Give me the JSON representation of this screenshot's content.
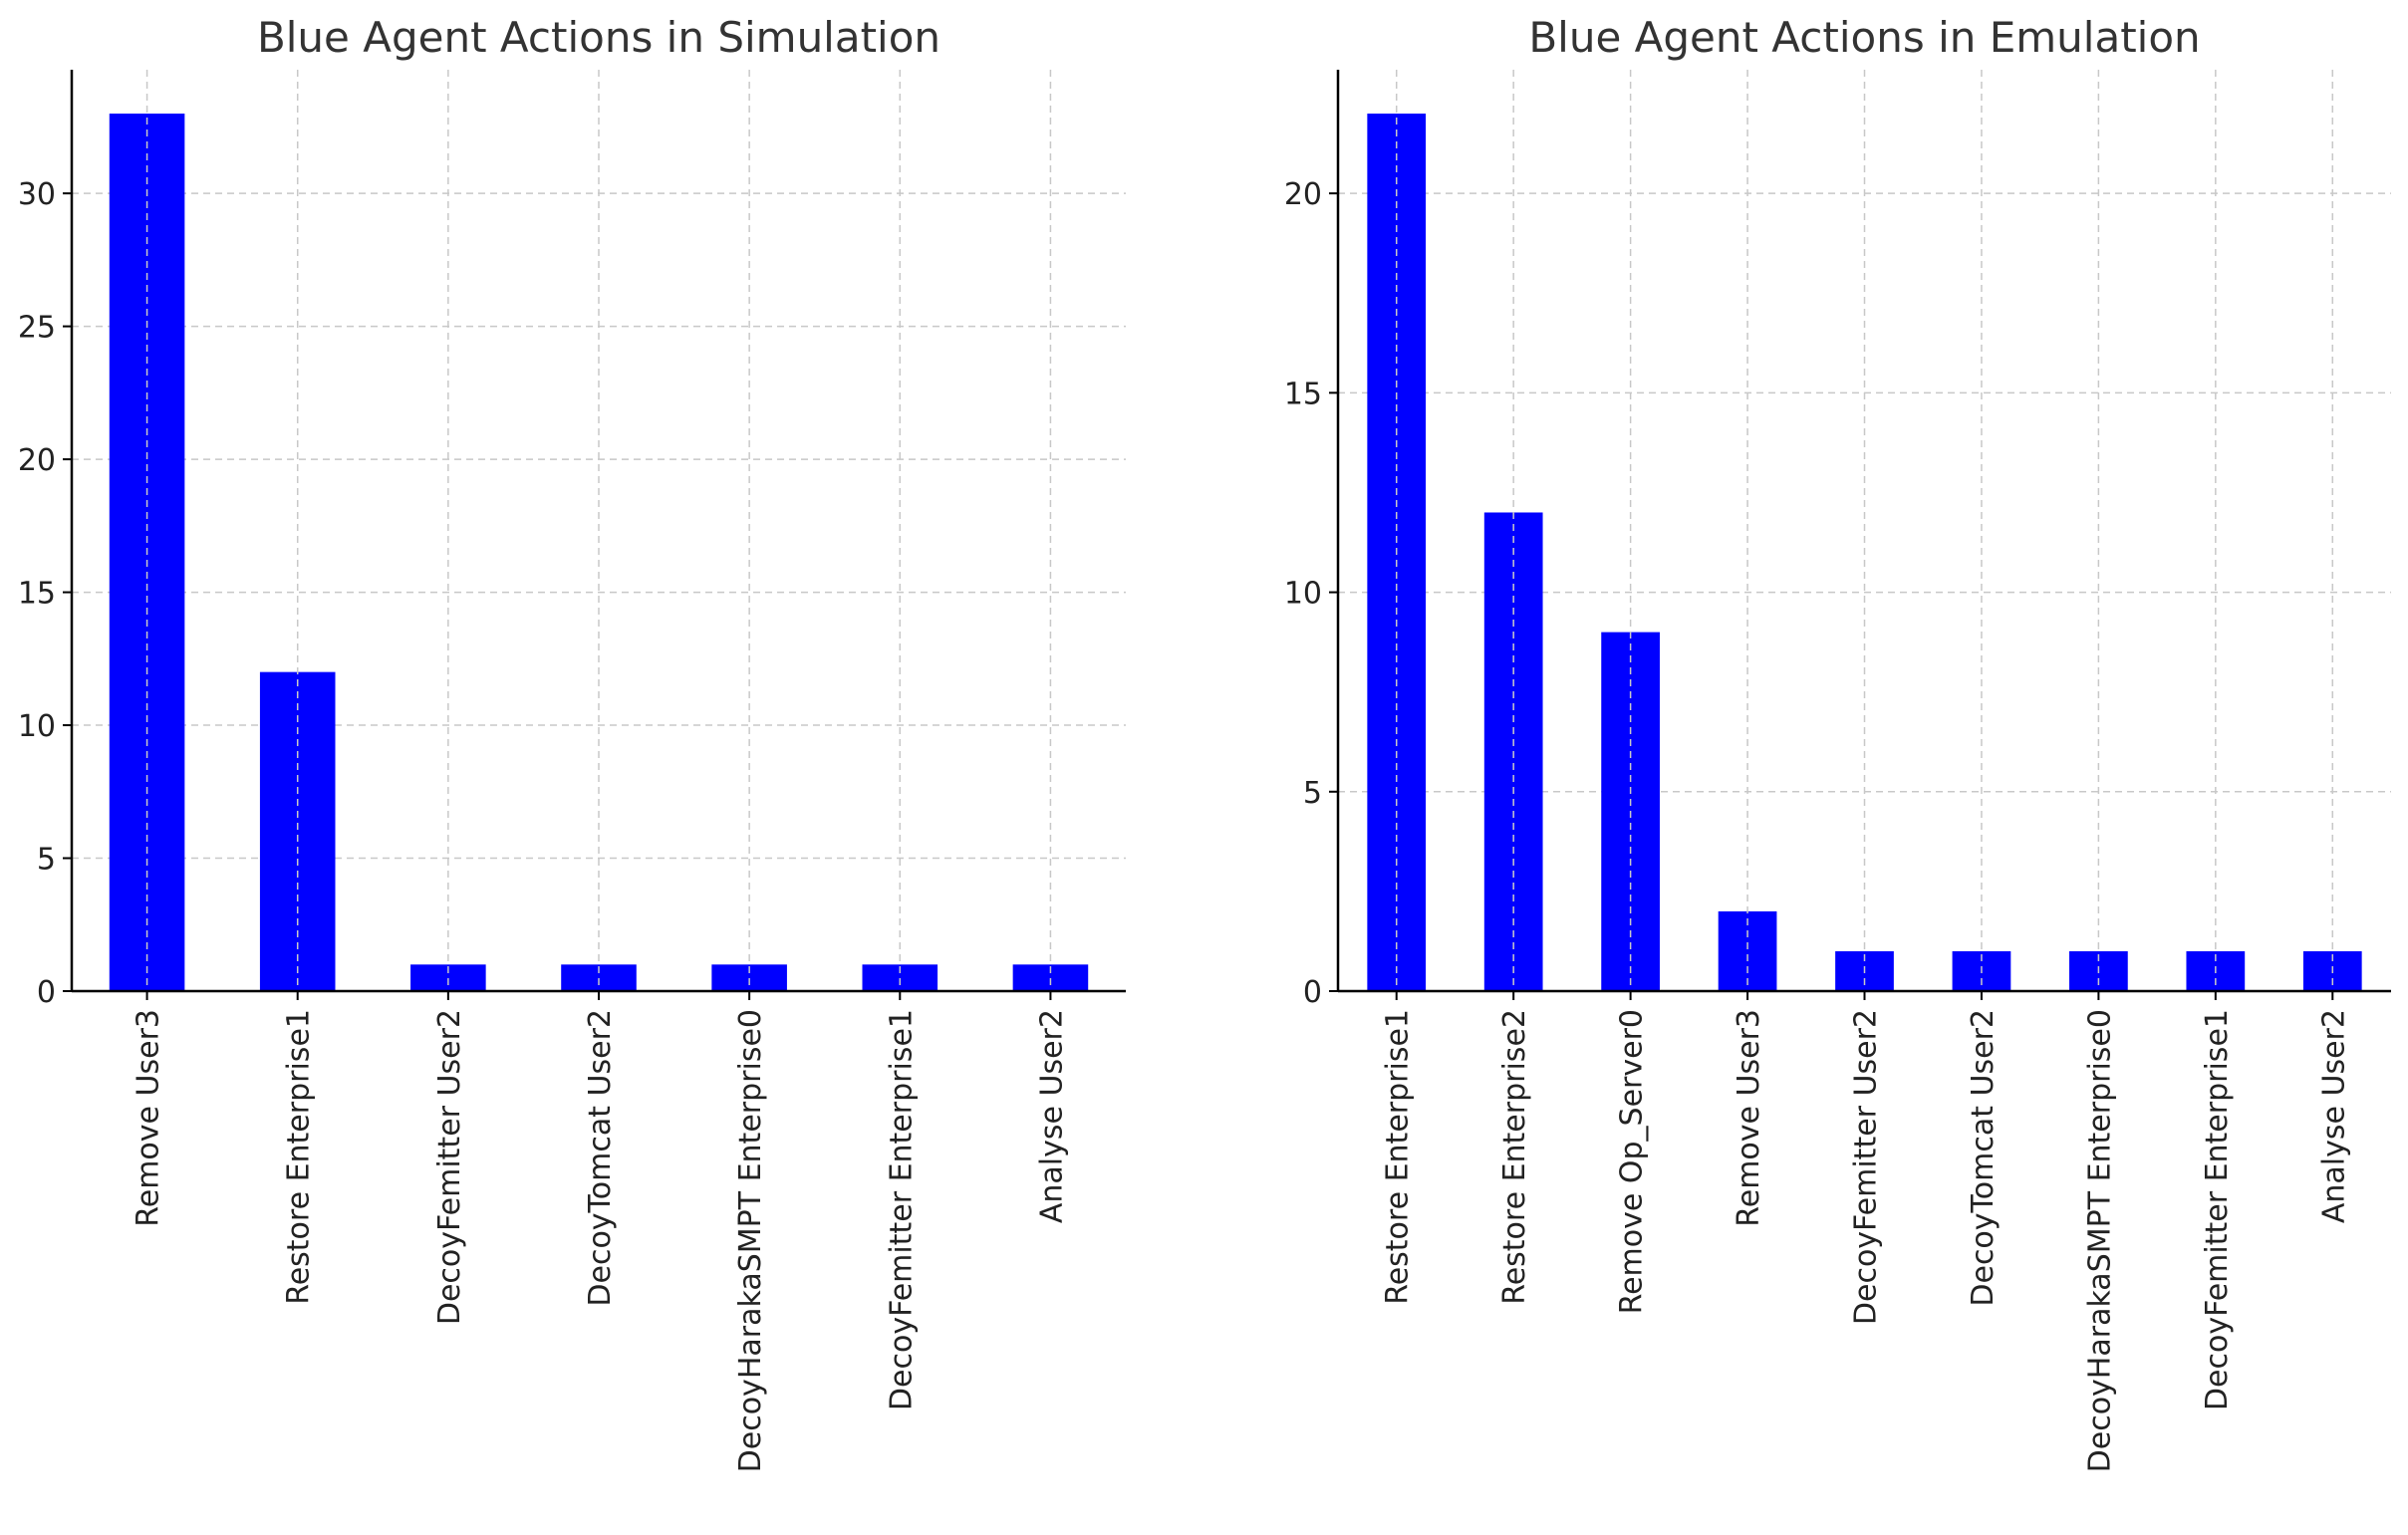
{
  "chart_data": [
    {
      "type": "bar",
      "title": "Blue Agent Actions in Simulation",
      "xlabel": "",
      "ylabel": "",
      "categories": [
        "Remove User3",
        "Restore Enterprise1",
        "DecoyFemitter User2",
        "DecoyTomcat User2",
        "DecoyHarakaSMPT Enterprise0",
        "DecoyFemitter Enterprise1",
        "Analyse User2"
      ],
      "values": [
        33,
        12,
        1,
        1,
        1,
        1,
        1
      ],
      "ylim": [
        0,
        34.65
      ],
      "yticks": [
        0,
        5,
        10,
        15,
        20,
        25,
        30
      ],
      "grid": true,
      "color": "#0000ff"
    },
    {
      "type": "bar",
      "title": "Blue Agent Actions in Emulation",
      "xlabel": "",
      "ylabel": "",
      "categories": [
        "Restore Enterprise1",
        "Restore Enterprise2",
        "Remove Op_Server0",
        "Remove User3",
        "DecoyFemitter User2",
        "DecoyTomcat User2",
        "DecoyHarakaSMPT Enterprise0",
        "DecoyFemitter Enterprise1",
        "Analyse User2"
      ],
      "values": [
        22,
        12,
        9,
        2,
        1,
        1,
        1,
        1,
        1
      ],
      "ylim": [
        0,
        23.1
      ],
      "yticks": [
        0,
        5,
        10,
        15,
        20
      ],
      "grid": true,
      "color": "#0000ff"
    }
  ]
}
